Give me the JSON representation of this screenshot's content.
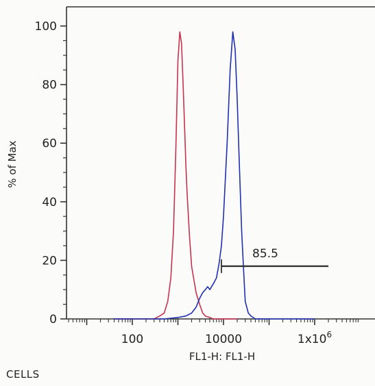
{
  "chart_data": {
    "type": "line",
    "title": "",
    "xlabel": "FL1-H: FL1-H",
    "ylabel": "% of Max",
    "x_scale": "log",
    "xlim": [
      1,
      2000000
    ],
    "ylim": [
      0,
      100
    ],
    "x_tick_labels": [
      {
        "value": 100,
        "label": "100"
      },
      {
        "value": 10000,
        "label": "10000"
      },
      {
        "value": 1000000,
        "label": "1x10",
        "sup": "6"
      }
    ],
    "y_ticks": [
      0,
      20,
      40,
      60,
      80,
      100
    ],
    "grid": false,
    "legend": "none",
    "series": [
      {
        "color": "#c8324e",
        "x": [
          40,
          300,
          400,
          500,
          600,
          700,
          800,
          900,
          1000,
          1100,
          1200,
          1300,
          1400,
          1500,
          1600,
          1800,
          2000,
          2500,
          3000,
          3500,
          4000,
          5000,
          6000,
          8000,
          10000,
          20000
        ],
        "y": [
          0,
          0,
          1,
          2,
          6,
          14,
          30,
          58,
          88,
          98,
          94,
          80,
          66,
          52,
          42,
          28,
          18,
          9,
          5,
          2,
          1,
          0.5,
          0,
          0,
          0,
          0
        ]
      },
      {
        "color": "#1f2fb0",
        "x": [
          40,
          500,
          1000,
          1500,
          2000,
          2500,
          3000,
          3500,
          4000,
          4500,
          5000,
          6000,
          7000,
          8000,
          9000,
          10000,
          12000,
          14000,
          16000,
          18000,
          20000,
          22000,
          25000,
          28000,
          30000,
          35000,
          40000,
          50000,
          60000,
          80000,
          1000000
        ],
        "y": [
          0,
          0,
          0.5,
          1,
          2,
          4,
          7,
          9,
          10,
          11,
          10,
          12,
          14,
          19,
          25,
          35,
          60,
          85,
          98,
          92,
          75,
          55,
          30,
          15,
          6,
          2,
          1,
          0,
          0,
          0,
          0
        ]
      }
    ],
    "annotations": [
      {
        "type": "gate",
        "x_start": 9000,
        "x_end": 2000000,
        "y": 18,
        "label": "85.5"
      }
    ],
    "footer": "CELLS"
  }
}
